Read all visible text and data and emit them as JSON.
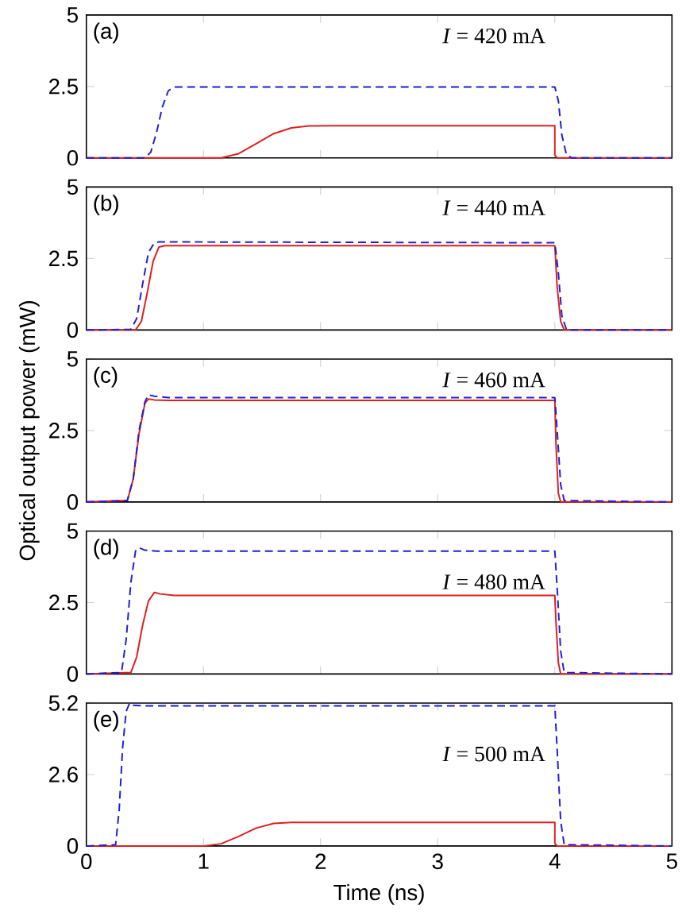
{
  "chart_data": [
    {
      "type": "line",
      "xlim": [
        0,
        5
      ],
      "xticks": [
        0,
        1,
        2,
        3,
        4,
        5
      ],
      "ylim": [
        0,
        5
      ],
      "yticks": [
        0,
        2.5,
        5
      ],
      "tick_labels": "y",
      "annotations": [
        "(a)",
        "*I* = 420 mA"
      ],
      "series": [
        {
          "color": "#1f1fd6",
          "line_style": "dashed",
          "x": [
            0,
            0.5,
            0.55,
            0.6,
            0.65,
            0.7,
            0.75,
            4.0,
            4.03,
            4.06,
            4.1,
            4.15,
            5
          ],
          "values": [
            0,
            0,
            0.2,
            0.9,
            1.8,
            2.35,
            2.48,
            2.48,
            2.0,
            0.8,
            0.1,
            0,
            0
          ]
        },
        {
          "color": "#e01f1f",
          "line_style": "solid",
          "x": [
            0,
            1.15,
            1.3,
            1.45,
            1.6,
            1.75,
            1.9,
            2.1,
            4.0,
            4.0,
            4.02,
            5
          ],
          "values": [
            0,
            0,
            0.15,
            0.5,
            0.85,
            1.05,
            1.12,
            1.13,
            1.13,
            0.1,
            0,
            0
          ]
        }
      ]
    },
    {
      "type": "line",
      "xlim": [
        0,
        5
      ],
      "xticks": [
        0,
        1,
        2,
        3,
        4,
        5
      ],
      "ylim": [
        0,
        5
      ],
      "yticks": [
        0,
        2.5,
        5
      ],
      "tick_labels": "y",
      "annotations": [
        "(b)",
        "*I* = 440 mA"
      ],
      "series": [
        {
          "color": "#1f1fd6",
          "line_style": "dashed",
          "x": [
            0,
            0.38,
            0.43,
            0.48,
            0.53,
            0.58,
            0.62,
            4.0,
            4.03,
            4.06,
            4.1,
            5
          ],
          "values": [
            0,
            0.02,
            0.4,
            1.6,
            2.7,
            3.05,
            3.08,
            3.05,
            2.0,
            0.5,
            0,
            0
          ]
        },
        {
          "color": "#e01f1f",
          "line_style": "solid",
          "x": [
            0,
            0.42,
            0.47,
            0.52,
            0.57,
            0.62,
            0.67,
            4.0,
            4.02,
            4.05,
            4.08,
            5
          ],
          "values": [
            0,
            0,
            0.3,
            1.3,
            2.4,
            2.9,
            2.95,
            2.95,
            1.5,
            0.3,
            0,
            0
          ]
        }
      ]
    },
    {
      "type": "line",
      "xlim": [
        0,
        5
      ],
      "xticks": [
        0,
        1,
        2,
        3,
        4,
        5
      ],
      "ylim": [
        0,
        5
      ],
      "yticks": [
        0,
        2.5,
        5
      ],
      "tick_labels": "y",
      "ylabel": "Optical output power (mW)",
      "annotations": [
        "(c)",
        "*I* = 460 mA"
      ],
      "series": [
        {
          "color": "#1f1fd6",
          "line_style": "dashed",
          "x": [
            0,
            0.35,
            0.4,
            0.45,
            0.5,
            0.53,
            0.58,
            0.7,
            4.0,
            4.02,
            4.05,
            4.08,
            5
          ],
          "values": [
            0,
            0.05,
            0.8,
            2.5,
            3.5,
            3.75,
            3.7,
            3.65,
            3.65,
            2.5,
            0.6,
            0.05,
            0
          ]
        },
        {
          "color": "#e01f1f",
          "line_style": "solid",
          "x": [
            0,
            0.35,
            0.4,
            0.45,
            0.5,
            0.53,
            0.58,
            0.7,
            4.0,
            4.01,
            4.03,
            4.05,
            5
          ],
          "values": [
            0,
            0.05,
            0.8,
            2.4,
            3.45,
            3.6,
            3.57,
            3.55,
            3.55,
            2.0,
            0.3,
            0,
            0
          ]
        }
      ]
    },
    {
      "type": "line",
      "xlim": [
        0,
        5
      ],
      "xticks": [
        0,
        1,
        2,
        3,
        4,
        5
      ],
      "ylim": [
        0,
        5
      ],
      "yticks": [
        0,
        2.5,
        5
      ],
      "tick_labels": "y",
      "annotations": [
        "(d)",
        "*I* = 480 mA"
      ],
      "series": [
        {
          "color": "#1f1fd6",
          "line_style": "dashed",
          "x": [
            0,
            0.3,
            0.34,
            0.38,
            0.42,
            0.45,
            0.5,
            0.6,
            4.0,
            4.02,
            4.05,
            4.08,
            5
          ],
          "values": [
            0,
            0.05,
            1.2,
            3.2,
            4.3,
            4.42,
            4.33,
            4.3,
            4.3,
            3.0,
            0.8,
            0.05,
            0
          ]
        },
        {
          "color": "#e01f1f",
          "line_style": "solid",
          "x": [
            0,
            0.38,
            0.43,
            0.48,
            0.53,
            0.58,
            0.63,
            0.75,
            4.0,
            4.01,
            4.03,
            4.05,
            5
          ],
          "values": [
            0,
            0.05,
            0.6,
            1.7,
            2.55,
            2.85,
            2.8,
            2.75,
            2.75,
            1.8,
            0.4,
            0,
            0
          ]
        }
      ]
    },
    {
      "type": "line",
      "xlim": [
        0,
        5
      ],
      "xticks": [
        0,
        1,
        2,
        3,
        4,
        5
      ],
      "ylim": [
        0,
        5.2
      ],
      "yticks": [
        0,
        2.6,
        5.2
      ],
      "xlabel": "Time (ns)",
      "annotations": [
        "(e)",
        "*I* = 500 mA"
      ],
      "series": [
        {
          "color": "#1f1fd6",
          "line_style": "dashed",
          "x": [
            0,
            0.25,
            0.28,
            0.31,
            0.34,
            0.37,
            0.4,
            0.5,
            4.0,
            4.02,
            4.05,
            4.08,
            5
          ],
          "values": [
            0,
            0.05,
            1.3,
            3.6,
            4.9,
            5.2,
            5.12,
            5.1,
            5.1,
            3.5,
            0.9,
            0.05,
            0
          ]
        },
        {
          "color": "#e01f1f",
          "line_style": "solid",
          "x": [
            0,
            1.0,
            1.15,
            1.3,
            1.45,
            1.6,
            1.75,
            4.0,
            4.0,
            4.02,
            5
          ],
          "values": [
            0,
            0,
            0.08,
            0.35,
            0.65,
            0.82,
            0.86,
            0.86,
            0.1,
            0,
            0
          ]
        }
      ]
    }
  ]
}
